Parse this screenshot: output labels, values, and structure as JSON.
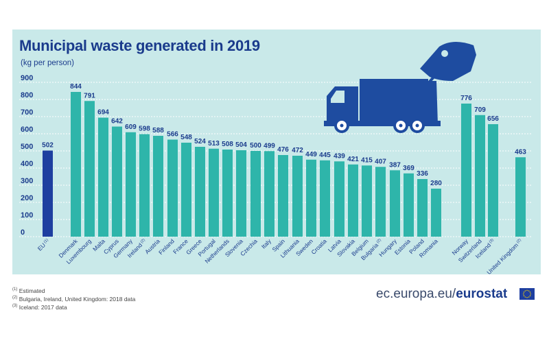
{
  "colors": {
    "panel": "#c9e9e9",
    "bar": "#2eb5aa",
    "bar_eu": "#1e3fa0",
    "text": "#1a3b8c",
    "truck": "#1e4ca0"
  },
  "icons": [
    "garbage-truck-icon",
    "eu-flag-icon"
  ],
  "chart_data": {
    "type": "bar",
    "title": "Municipal waste generated in 2019",
    "subtitle": "(kg per person)",
    "ylim": [
      0,
      900
    ],
    "yticks": [
      0,
      100,
      200,
      300,
      400,
      500,
      600,
      700,
      800,
      900
    ],
    "grid": true,
    "categories": [
      {
        "label": "EU",
        "note": "(1)",
        "value": 502,
        "highlight": true
      },
      {
        "label": "Denmark",
        "note": "",
        "value": 844
      },
      {
        "label": "Luxembourg",
        "note": "",
        "value": 791
      },
      {
        "label": "Malta",
        "note": "",
        "value": 694
      },
      {
        "label": "Cyprus",
        "note": "",
        "value": 642
      },
      {
        "label": "Germany",
        "note": "",
        "value": 609
      },
      {
        "label": "Ireland",
        "note": "(2)",
        "value": 598
      },
      {
        "label": "Austria",
        "note": "",
        "value": 588
      },
      {
        "label": "Finland",
        "note": "",
        "value": 566
      },
      {
        "label": "France",
        "note": "",
        "value": 548
      },
      {
        "label": "Greece",
        "note": "",
        "value": 524
      },
      {
        "label": "Portugal",
        "note": "",
        "value": 513
      },
      {
        "label": "Netherlands",
        "note": "",
        "value": 508
      },
      {
        "label": "Slovenia",
        "note": "",
        "value": 504
      },
      {
        "label": "Czechia",
        "note": "",
        "value": 500
      },
      {
        "label": "Italy",
        "note": "",
        "value": 499
      },
      {
        "label": "Spain",
        "note": "",
        "value": 476
      },
      {
        "label": "Lithuania",
        "note": "",
        "value": 472
      },
      {
        "label": "Sweden",
        "note": "",
        "value": 449
      },
      {
        "label": "Croatia",
        "note": "",
        "value": 445
      },
      {
        "label": "Latvia",
        "note": "",
        "value": 439
      },
      {
        "label": "Slovakia",
        "note": "",
        "value": 421
      },
      {
        "label": "Belgium",
        "note": "",
        "value": 415
      },
      {
        "label": "Bulgaria",
        "note": "(2)",
        "value": 407
      },
      {
        "label": "Hungary",
        "note": "",
        "value": 387
      },
      {
        "label": "Estonia",
        "note": "",
        "value": 369
      },
      {
        "label": "Poland",
        "note": "",
        "value": 336
      },
      {
        "label": "Romania",
        "note": "",
        "value": 280
      },
      {
        "label": "Norway",
        "note": "",
        "value": 776
      },
      {
        "label": "Switzerland",
        "note": "",
        "value": 709
      },
      {
        "label": "Iceland",
        "note": "(3)",
        "value": 656
      },
      {
        "label": "United Kingdom",
        "note": "(2)",
        "value": 463
      }
    ]
  },
  "footnotes": [
    {
      "mark": "(1)",
      "text": "Estimated"
    },
    {
      "mark": "(2)",
      "text": "Bulgaria, Ireland, United Kingdom: 2018 data"
    },
    {
      "mark": "(3)",
      "text": "Iceland: 2017 data"
    }
  ],
  "brand": {
    "prefix": "ec.europa.eu/",
    "name": "eurostat"
  }
}
